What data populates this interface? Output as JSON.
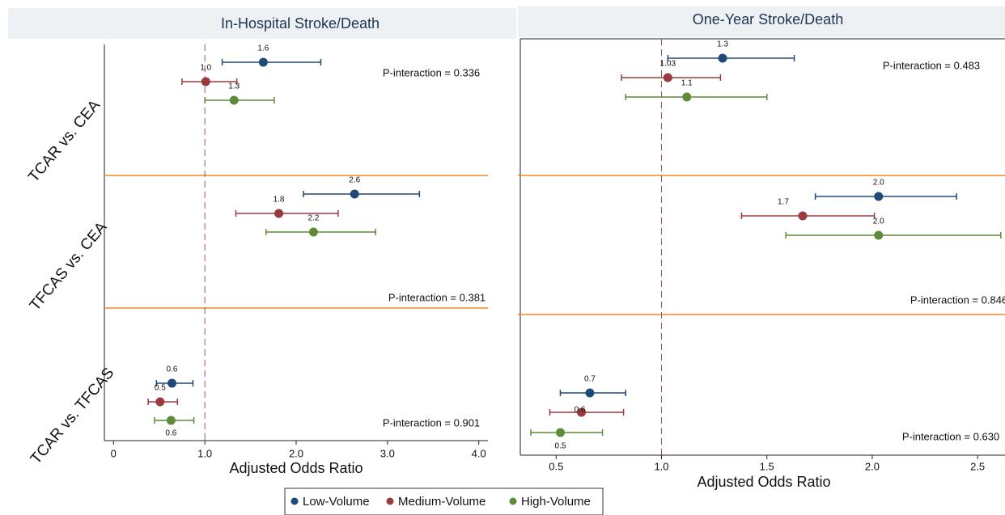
{
  "chart_data": [
    {
      "type": "forest",
      "title": "In-Hospital Stroke/Death",
      "x_label": "Adjusted Odds Ratio",
      "categories": [
        "TCAR vs. CEA",
        "TFCAS vs. CEA",
        "TCAR vs. TFCAS"
      ],
      "annotations": [
        "P-interaction = 0.336",
        "P-interaction = 0.381",
        "P-interaction = 0.901"
      ],
      "xlim": [
        -0.1,
        4.1
      ],
      "xticks": [
        0,
        {
          "value": 1,
          "label": "1.0"
        },
        {
          "value": 2,
          "label": "2.0"
        },
        {
          "value": 3,
          "label": "3.0"
        },
        {
          "value": 4,
          "label": "4.0"
        }
      ],
      "reference_line": 1,
      "series": [
        {
          "name": "Low-Volume",
          "color": "#1f4a78",
          "values": [
            1.64,
            2.64,
            0.64
          ],
          "value_labels": [
            "1.6",
            "2.6",
            "0.6"
          ],
          "lower": [
            1.19,
            2.08,
            0.47
          ],
          "upper": [
            2.27,
            3.35,
            0.87
          ]
        },
        {
          "name": "Medium-Volume",
          "color": "#9a3a3e",
          "values": [
            1.01,
            1.81,
            0.51
          ],
          "value_labels": [
            "1.0",
            "1.8",
            "0.5"
          ],
          "lower": [
            0.75,
            1.34,
            0.38
          ],
          "upper": [
            1.35,
            2.46,
            0.7
          ]
        },
        {
          "name": "High-Volume",
          "color": "#5e8a3a",
          "values": [
            1.32,
            2.19,
            0.63
          ],
          "value_labels": [
            "1.3",
            "2.2",
            "0.6"
          ],
          "lower": [
            1.0,
            1.67,
            0.45
          ],
          "upper": [
            1.76,
            2.87,
            0.88
          ]
        }
      ]
    },
    {
      "type": "forest",
      "title": "One-Year Stroke/Death",
      "x_label": "Adjusted Odds Ratio",
      "annotations": [
        "P-interaction = 0.483",
        "P-interaction = 0.846",
        "P-interaction = 0.630"
      ],
      "xlim": [
        0.33,
        2.63
      ],
      "xticks": [
        0.5,
        {
          "value": 1,
          "label": "1.0"
        },
        1.5,
        {
          "value": 2,
          "label": "2.0"
        },
        2.5
      ],
      "reference_line": 1,
      "series": [
        {
          "color": "#1f4a78",
          "values": [
            1.29,
            2.03,
            0.66
          ],
          "value_labels": [
            "1.3",
            "2.0",
            "0.7"
          ],
          "lower": [
            1.03,
            1.73,
            0.52
          ],
          "upper": [
            1.63,
            2.4,
            0.83
          ]
        },
        {
          "color": "#9a3a3e",
          "values": [
            1.03,
            1.67,
            0.62
          ],
          "value_labels": [
            "1.03",
            "1.7",
            "0.6"
          ],
          "lower": [
            0.81,
            1.38,
            0.47
          ],
          "upper": [
            1.28,
            2.01,
            0.82
          ]
        },
        {
          "color": "#5e8a3a",
          "values": [
            1.12,
            2.03,
            0.52
          ],
          "value_labels": [
            "1.1",
            "2.0",
            "0.5"
          ],
          "lower": [
            0.83,
            1.59,
            0.38
          ],
          "upper": [
            1.5,
            2.61,
            0.72
          ]
        }
      ]
    }
  ]
}
